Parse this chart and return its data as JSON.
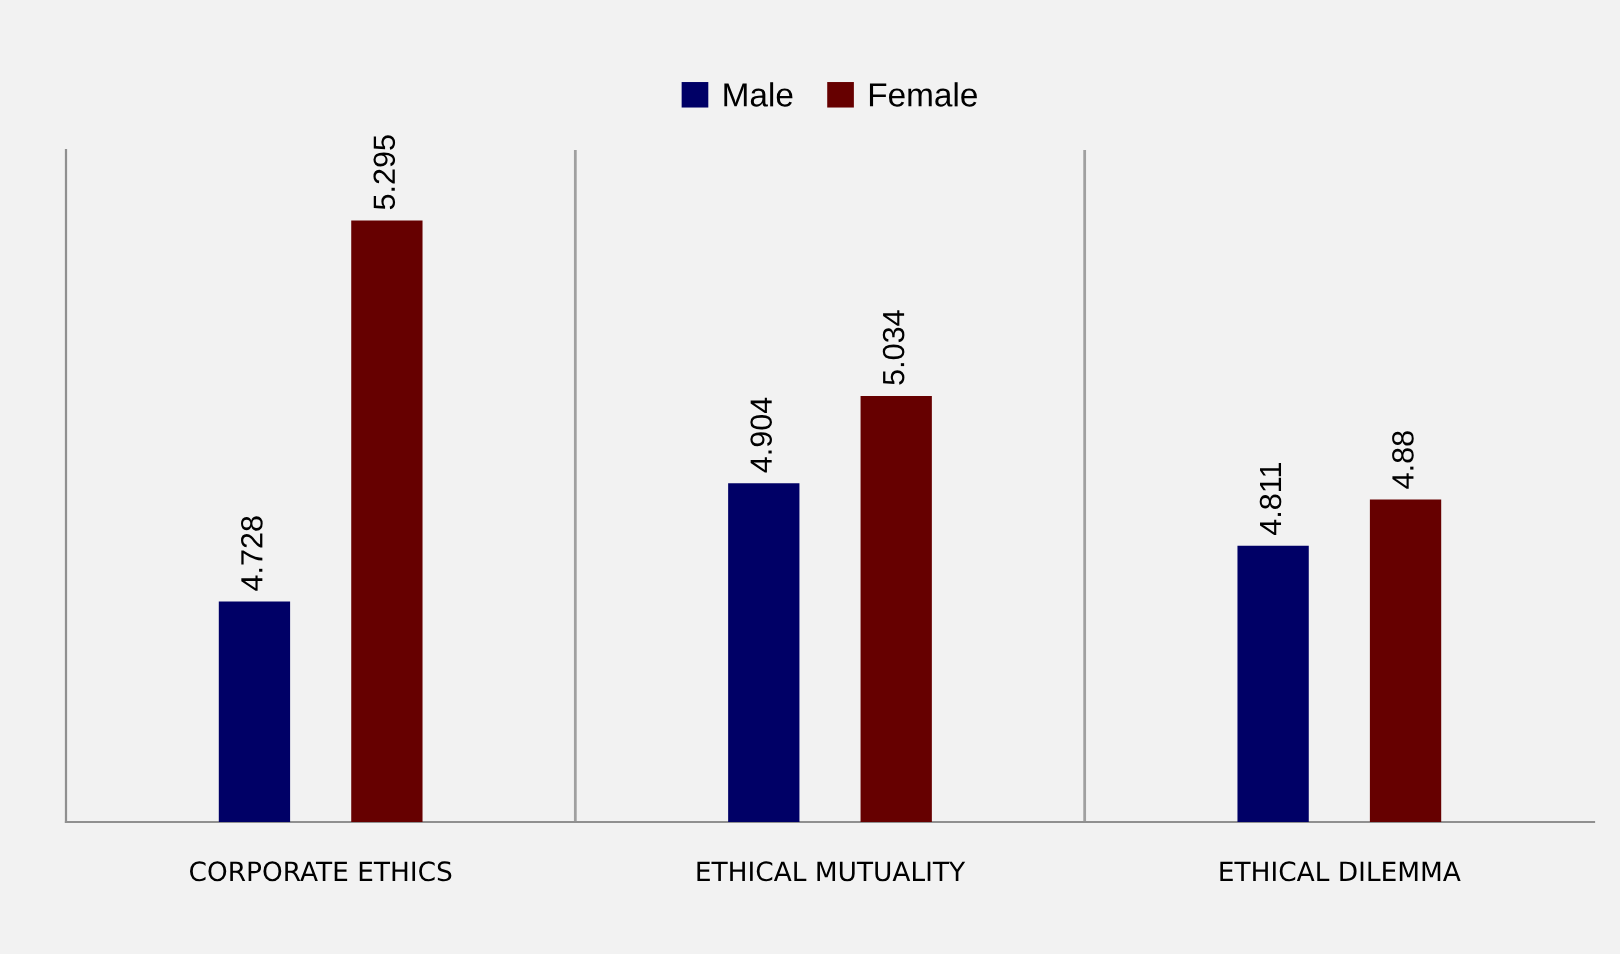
{
  "chart_data": {
    "type": "bar",
    "categories": [
      "CORPORATE ETHICS",
      "ETHICAL MUTUALITY",
      "ETHICAL DILEMMA"
    ],
    "series": [
      {
        "name": "Male",
        "color": "#000066",
        "values": [
          4.728,
          4.904,
          4.811
        ]
      },
      {
        "name": "Female",
        "color": "#660000",
        "values": [
          5.295,
          5.034,
          4.88
        ]
      }
    ],
    "ylim": [
      4.4,
      5.4
    ],
    "tick_labels": "x",
    "data_labels": true,
    "grid": "x",
    "legend": "top"
  }
}
